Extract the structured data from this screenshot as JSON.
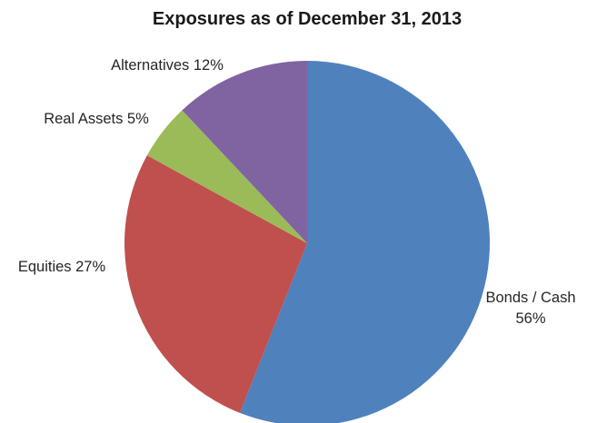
{
  "chart_data": {
    "type": "pie",
    "title": "Exposures as of December 31, 2013",
    "start_angle_deg": 0,
    "direction": "clockwise",
    "slices": [
      {
        "label": "Bonds / Cash",
        "value": 56,
        "display": "56%",
        "color": "#4F81BD"
      },
      {
        "label": "Equities",
        "value": 27,
        "display": "27%",
        "color": "#C0504D"
      },
      {
        "label": "Real Assets",
        "value": 5,
        "display": "5%",
        "color": "#9BBB59"
      },
      {
        "label": "Alternatives",
        "value": 12,
        "display": "12%",
        "color": "#8064A2"
      }
    ]
  }
}
